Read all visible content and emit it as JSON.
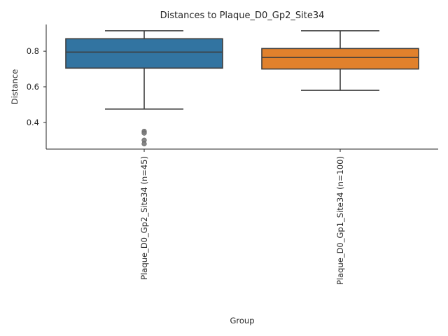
{
  "chart_data": {
    "type": "box",
    "title": "Distances to Plaque_D0_Gp2_Site34",
    "xlabel": "Group",
    "ylabel": "Distance",
    "ylim": [
      0.25,
      0.95
    ],
    "yticks": [
      0.4,
      0.6,
      0.8
    ],
    "ytick_labels": [
      "0.4",
      "0.6",
      "0.8"
    ],
    "grid": false,
    "categories": [
      "Plaque_D0_Gp2_Site34 (n=45)",
      "Plaque_D0_Gp1_Site34 (n=100)"
    ],
    "boxes": [
      {
        "name": "Plaque_D0_Gp2_Site34 (n=45)",
        "color": "#3274a1",
        "whisker_low": 0.475,
        "q1": 0.705,
        "median": 0.795,
        "q3": 0.87,
        "whisker_high": 0.915,
        "outliers": [
          0.35,
          0.34,
          0.3,
          0.28
        ]
      },
      {
        "name": "Plaque_D0_Gp1_Site34 (n=100)",
        "color": "#e1812c",
        "whisker_low": 0.58,
        "q1": 0.7,
        "median": 0.765,
        "q3": 0.815,
        "whisker_high": 0.915,
        "outliers": []
      }
    ]
  }
}
